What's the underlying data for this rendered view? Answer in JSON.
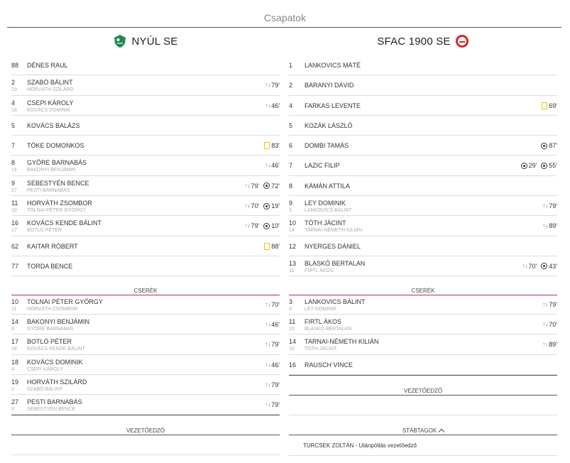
{
  "page": {
    "title": "Csapatok"
  },
  "home": {
    "name": "NYÚL SE",
    "crest_color": "#1f8a4c",
    "lineup": [
      {
        "num": "88",
        "name": "DÉNES RAUL",
        "events": []
      },
      {
        "num": "2",
        "name": "SZABÓ BÁLINT",
        "sub_num": "19",
        "sub_name": "HORVÁTH SZILÁRD",
        "events": [
          {
            "type": "swap-icon",
            "min": "79'"
          }
        ]
      },
      {
        "num": "4",
        "name": "CSEPI KÁROLY",
        "sub_num": "18",
        "sub_name": "KOVÁCS DOMINIK",
        "events": [
          {
            "type": "swap-icon",
            "min": "46'"
          }
        ]
      },
      {
        "num": "5",
        "name": "KOVÁCS BALÁZS",
        "events": []
      },
      {
        "num": "7",
        "name": "TÖKE DOMONKOS",
        "events": [
          {
            "type": "yellow-card-icon",
            "min": "83'"
          }
        ]
      },
      {
        "num": "8",
        "name": "GYÖRE BARNABÁS",
        "sub_num": "14",
        "sub_name": "BAKONYI BENJÁMIN",
        "events": [
          {
            "type": "swap-icon",
            "min": "46'"
          }
        ]
      },
      {
        "num": "9",
        "name": "SEBESTYÉN BENCE",
        "sub_num": "27",
        "sub_name": "PESTI BARNABÁS",
        "events": [
          {
            "type": "swap-icon",
            "min": "79'"
          },
          {
            "type": "goal-icon",
            "min": "72'"
          }
        ]
      },
      {
        "num": "11",
        "name": "HORVÁTH ZSOMBOR",
        "sub_num": "10",
        "sub_name": "TOLNAI PÉTER GYÖRGY",
        "events": [
          {
            "type": "swap-icon",
            "min": "70'"
          },
          {
            "type": "goal-icon",
            "min": "19'"
          }
        ]
      },
      {
        "num": "16",
        "name": "KOVÁCS KENDE BÁLINT",
        "sub_num": "17",
        "sub_name": "BOTLÓ PÉTER",
        "events": [
          {
            "type": "swap-icon",
            "min": "79'"
          },
          {
            "type": "goal-icon",
            "min": "10'"
          }
        ]
      },
      {
        "num": "62",
        "name": "KAITAR RÓBERT",
        "events": [
          {
            "type": "yellow-card-icon",
            "min": "88'"
          }
        ]
      },
      {
        "num": "77",
        "name": "TORDA BENCE",
        "events": []
      }
    ],
    "subs_title": "CSERÉK",
    "subs": [
      {
        "num": "10",
        "name": "TOLNAI PÉTER GYÖRGY",
        "sub_num": "11",
        "sub_name": "HORVÁTH ZSOMBOR",
        "events": [
          {
            "type": "swap-icon",
            "min": "70'"
          }
        ]
      },
      {
        "num": "14",
        "name": "BAKONYI BENJÁMIN",
        "sub_num": "8",
        "sub_name": "GYÖRE BARNABÁS",
        "events": [
          {
            "type": "swap-icon",
            "min": "46'"
          }
        ]
      },
      {
        "num": "17",
        "name": "BOTLÓ PÉTER",
        "sub_num": "16",
        "sub_name": "KOVÁCS KENDE BÁLINT",
        "events": [
          {
            "type": "swap-icon",
            "min": "79'"
          }
        ]
      },
      {
        "num": "18",
        "name": "KOVÁCS DOMINIK",
        "sub_num": "4",
        "sub_name": "CSEPI KÁROLY",
        "events": [
          {
            "type": "swap-icon",
            "min": "46'"
          }
        ]
      },
      {
        "num": "19",
        "name": "HORVÁTH SZILÁRD",
        "sub_num": "2",
        "sub_name": "SZABÓ BÁLINT",
        "events": [
          {
            "type": "swap-icon",
            "min": "79'"
          }
        ]
      },
      {
        "num": "27",
        "name": "PESTI BARNABÁS",
        "sub_num": "9",
        "sub_name": "SEBESTYÉN BENCE",
        "events": [
          {
            "type": "swap-icon",
            "min": "79'"
          }
        ]
      }
    ],
    "coach_title": "VEZETŐEDZŐ"
  },
  "away": {
    "name": "SFAC 1900 SE",
    "crest_color": "#d62828",
    "lineup": [
      {
        "num": "1",
        "name": "LANKOVICS MÁTÉ",
        "events": []
      },
      {
        "num": "2",
        "name": "BARANYI DÁVID",
        "events": []
      },
      {
        "num": "4",
        "name": "FARKAS LEVENTE",
        "events": [
          {
            "type": "yellow-card-icon",
            "min": "69'"
          }
        ]
      },
      {
        "num": "5",
        "name": "KOZÁK LÁSZLÓ",
        "events": []
      },
      {
        "num": "6",
        "name": "DOMBI TAMÁS",
        "events": [
          {
            "type": "goal-icon",
            "min": "87'"
          }
        ]
      },
      {
        "num": "7",
        "name": "LAZIC FILIP",
        "events": [
          {
            "type": "goal-icon",
            "min": "29'"
          },
          {
            "type": "goal-icon",
            "min": "55'"
          }
        ]
      },
      {
        "num": "8",
        "name": "KÁMÁN ATTILA",
        "events": []
      },
      {
        "num": "9",
        "name": "LEY DOMINIK",
        "sub_num": "3",
        "sub_name": "LANKOVICS BÁLINT",
        "events": [
          {
            "type": "swap-icon",
            "min": "79'"
          }
        ]
      },
      {
        "num": "10",
        "name": "TÓTH JÁCINT",
        "sub_num": "14",
        "sub_name": "TARNAI-NÉMETH KILIÁN",
        "events": [
          {
            "type": "swap-icon",
            "min": "89'"
          }
        ]
      },
      {
        "num": "12",
        "name": "NYERGES DÁNIEL",
        "events": []
      },
      {
        "num": "13",
        "name": "BLASKÓ BERTALAN",
        "sub_num": "11",
        "sub_name": "FIRTL ÁKOS",
        "events": [
          {
            "type": "swap-icon",
            "min": "70'"
          },
          {
            "type": "goal-icon",
            "min": "43'"
          }
        ]
      }
    ],
    "subs_title": "CSERÉK",
    "subs": [
      {
        "num": "3",
        "name": "LANKOVICS BÁLINT",
        "sub_num": "9",
        "sub_name": "LEY DOMINIK",
        "events": [
          {
            "type": "swap-icon",
            "min": "79'"
          }
        ]
      },
      {
        "num": "11",
        "name": "FIRTL ÁKOS",
        "sub_num": "13",
        "sub_name": "BLASKÓ BERTALAN",
        "events": [
          {
            "type": "swap-icon",
            "min": "70'"
          }
        ]
      },
      {
        "num": "14",
        "name": "TARNAI-NÉMETH KILIÁN",
        "sub_num": "10",
        "sub_name": "TÓTH JÁCINT",
        "events": [
          {
            "type": "swap-icon",
            "min": "89'"
          }
        ]
      },
      {
        "num": "16",
        "name": "RAUSCH VINCE",
        "events": []
      }
    ],
    "coach_title": "VEZETŐEDZŐ",
    "staff_title": "STÁBTAGOK",
    "staff": [
      "TURCSEK ZOLTÁN - Utánpótlás vezetőedző"
    ]
  }
}
